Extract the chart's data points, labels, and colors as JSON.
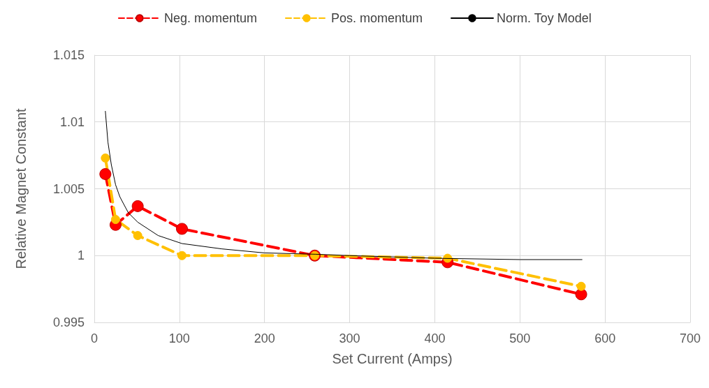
{
  "chart_data": {
    "type": "line",
    "xlabel": "Set Current (Amps)",
    "ylabel": "Relative Magnet Constant",
    "xlim": [
      0,
      700
    ],
    "xticks": [
      0,
      100,
      200,
      300,
      400,
      500,
      600,
      700
    ],
    "ylim": [
      0.995,
      1.015
    ],
    "yticks": [
      0.995,
      1,
      1.005,
      1.01,
      1.015
    ],
    "grid": true,
    "legend": "top",
    "series": [
      {
        "name": "Neg. momentum",
        "color": "#ff0000",
        "line_style": "dashed",
        "marker": "circle",
        "x": [
          13,
          25,
          51,
          103,
          259,
          415,
          572
        ],
        "values": [
          1.0061,
          1.0023,
          1.0037,
          1.002,
          1.0,
          0.9995,
          0.9971
        ]
      },
      {
        "name": "Pos. momentum",
        "color": "#ffc000",
        "line_style": "dashed",
        "marker": "circle",
        "x": [
          13,
          25,
          51,
          103,
          259,
          415,
          572
        ],
        "values": [
          1.0073,
          1.0027,
          1.0015,
          1.0,
          1.0,
          0.9998,
          0.9977
        ]
      },
      {
        "name": "Norm. Toy Model",
        "color": "#000000",
        "line_style": "solid",
        "marker": "none",
        "x": [
          13,
          16,
          20,
          25,
          30,
          40,
          51,
          75,
          103,
          150,
          200,
          260,
          300,
          400,
          500,
          573
        ],
        "values": [
          1.0108,
          1.0085,
          1.0068,
          1.0053,
          1.0044,
          1.0032,
          1.0025,
          1.0015,
          1.0009,
          1.0005,
          1.0002,
          1.0001,
          1.0,
          0.9998,
          0.9997,
          0.9997
        ]
      }
    ]
  }
}
